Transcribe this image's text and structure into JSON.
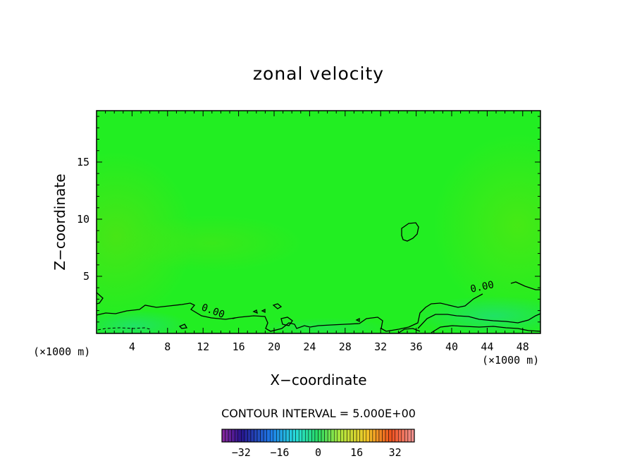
{
  "chart_data": {
    "type": "heatmap",
    "title": "zonal velocity",
    "xlabel": "X−coordinate",
    "ylabel": "Z−coordinate",
    "x_unit_label_left": "(×1000 m)",
    "x_unit_label_right": "(×1000 m)",
    "xlim": [
      0,
      50
    ],
    "ylim": [
      0,
      19.5
    ],
    "x_ticks": [
      4,
      8,
      12,
      16,
      20,
      24,
      28,
      32,
      36,
      40,
      44,
      48
    ],
    "y_ticks": [
      5,
      10,
      15
    ],
    "contour_labels": [
      {
        "text": "0.00",
        "x": 13,
        "z": 1.7
      },
      {
        "text": "0.00",
        "x": 43.5,
        "z": 3.8
      }
    ],
    "contour_interval_text": "CONTOUR INTERVAL = 5.000E+00",
    "colorbar": {
      "min": -40,
      "max": 40,
      "tick_labels": [
        "−32",
        "−16",
        "0",
        "16",
        "32"
      ],
      "tick_values": [
        -32,
        -16,
        0,
        16,
        32
      ]
    },
    "field_value_range": [
      -4,
      2
    ],
    "colors": {
      "background_field": "#22ee22",
      "contour_line": "#000000"
    }
  }
}
